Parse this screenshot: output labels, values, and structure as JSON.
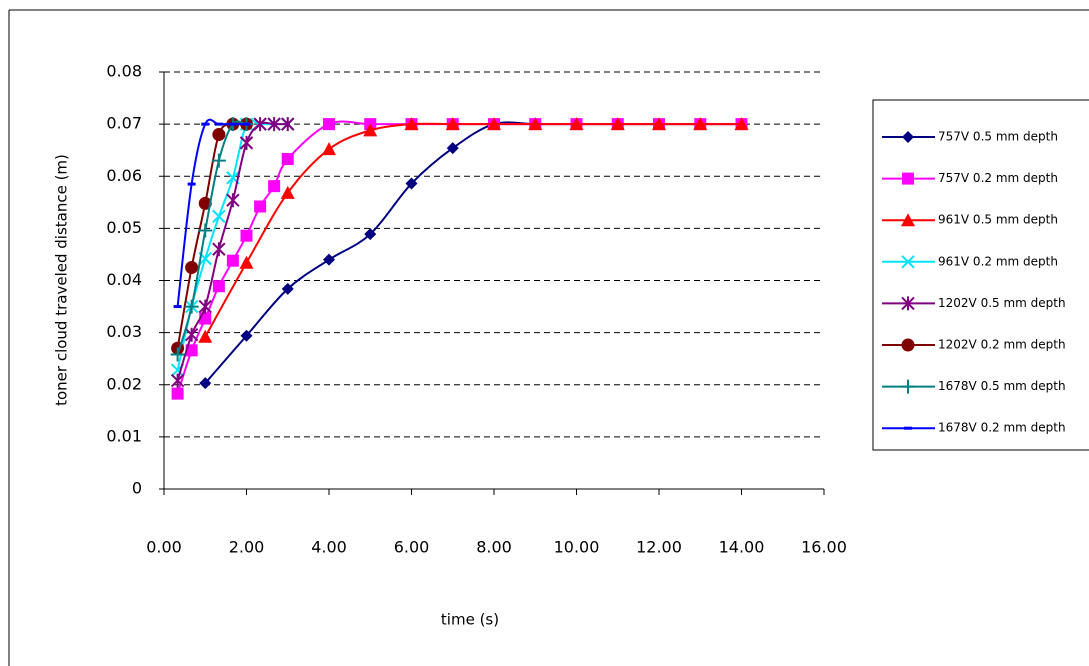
{
  "chart_data": {
    "type": "scatter",
    "x_label": "time (s)",
    "y_label": "toner cloud traveled distance (m)",
    "xlim": [
      0,
      16
    ],
    "xticks": [
      {
        "value": 0,
        "label": "0.00"
      },
      {
        "value": 2,
        "label": "2.00"
      },
      {
        "value": 4,
        "label": "4.00"
      },
      {
        "value": 6,
        "label": "6.00"
      },
      {
        "value": 8,
        "label": "8.00"
      },
      {
        "value": 10,
        "label": "10.00"
      },
      {
        "value": 12,
        "label": "12.00"
      },
      {
        "value": 14,
        "label": "14.00"
      },
      {
        "value": 16,
        "label": "16.00"
      }
    ],
    "ylim": [
      0,
      0.08
    ],
    "yticks": [
      0,
      0.01,
      0.02,
      0.03,
      0.04,
      0.05,
      0.06,
      0.07,
      0.08
    ],
    "grid": true,
    "legend": "right",
    "series": [
      {
        "name": "757V 0.5 mm depth",
        "color": "#000080",
        "marker": "diamond",
        "x": [
          1,
          2,
          3,
          4,
          5,
          6,
          7,
          8,
          9,
          10,
          11,
          12,
          13,
          14
        ],
        "values": [
          0.0203,
          0.0294,
          0.0384,
          0.044,
          0.0489,
          0.0586,
          0.0654,
          0.07,
          0.07,
          0.07,
          0.07,
          0.07,
          0.07,
          0.07
        ]
      },
      {
        "name": "757V 0.2 mm depth",
        "color": "#ff00ff",
        "marker": "square",
        "x": [
          0.33,
          0.67,
          1,
          1.33,
          1.67,
          2,
          2.33,
          2.67,
          3,
          4,
          5,
          6,
          7,
          8,
          9,
          10,
          11,
          12,
          13,
          14
        ],
        "values": [
          0.0183,
          0.0266,
          0.0327,
          0.0389,
          0.0438,
          0.0486,
          0.0542,
          0.0581,
          0.0633,
          0.07,
          0.07,
          0.07,
          0.07,
          0.07,
          0.07,
          0.07,
          0.07,
          0.07,
          0.07,
          0.07
        ]
      },
      {
        "name": "961V 0.5 mm depth",
        "color": "#ff0000",
        "marker": "triangle",
        "x": [
          1,
          2,
          3,
          4,
          5,
          6,
          7,
          8,
          9,
          10,
          11,
          12,
          13,
          14
        ],
        "values": [
          0.0292,
          0.0434,
          0.0568,
          0.0652,
          0.0688,
          0.07,
          0.07,
          0.07,
          0.07,
          0.07,
          0.07,
          0.07,
          0.07,
          0.07
        ]
      },
      {
        "name": "961V 0.2 mm depth",
        "color": "#00e5ff",
        "marker": "x",
        "x": [
          0.33,
          0.67,
          1,
          1.33,
          1.67,
          2,
          2.33,
          2.67,
          3
        ],
        "values": [
          0.0228,
          0.035,
          0.0442,
          0.0523,
          0.0597,
          0.07,
          0.07,
          0.07,
          0.07
        ]
      },
      {
        "name": "1202V 0.5 mm depth",
        "color": "#800080",
        "marker": "star",
        "x": [
          0.33,
          0.67,
          1,
          1.33,
          1.67,
          2,
          2.33,
          2.67,
          3
        ],
        "values": [
          0.0208,
          0.0296,
          0.035,
          0.046,
          0.0554,
          0.0664,
          0.07,
          0.07,
          0.07
        ]
      },
      {
        "name": "1202V 0.2 mm depth",
        "color": "#800000",
        "marker": "circle",
        "x": [
          0.33,
          0.67,
          1,
          1.33,
          1.67,
          2
        ],
        "values": [
          0.027,
          0.0425,
          0.0548,
          0.068,
          0.07,
          0.07
        ]
      },
      {
        "name": "1678V 0.5 mm depth",
        "color": "#008080",
        "marker": "plus",
        "x": [
          0.33,
          0.67,
          1,
          1.33,
          1.67,
          2
        ],
        "values": [
          0.0258,
          0.035,
          0.0496,
          0.063,
          0.07,
          0.07
        ]
      },
      {
        "name": "1678V 0.2 mm depth",
        "color": "#0000ff",
        "marker": "dash",
        "x": [
          0.33,
          0.67,
          1,
          1.33,
          1.67,
          2
        ],
        "values": [
          0.035,
          0.0585,
          0.07,
          0.07,
          0.07,
          0.07
        ]
      }
    ]
  }
}
